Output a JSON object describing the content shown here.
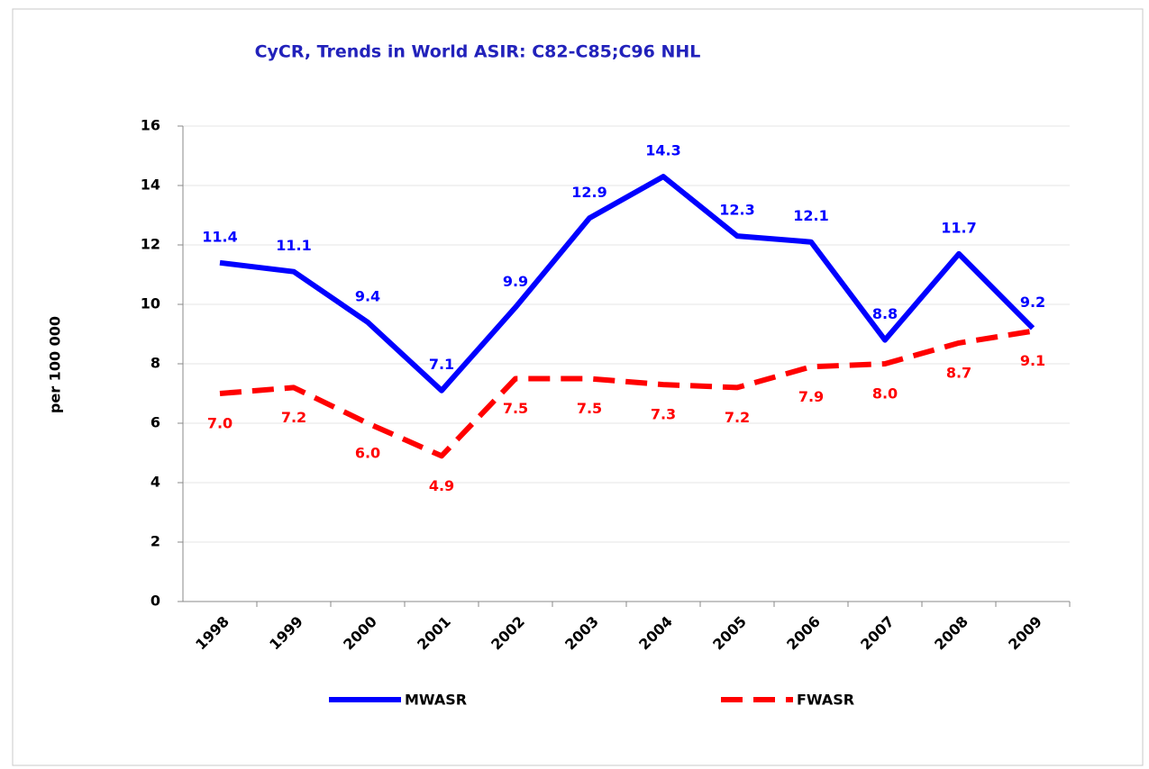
{
  "chart_data": {
    "type": "line",
    "title": "CyCR,  Trends in World ASIR:   C82-C85;C96  NHL",
    "y_label": "per 100 000",
    "categories": [
      "1998",
      "1999",
      "2000",
      "2001",
      "2002",
      "2003",
      "2004",
      "2005",
      "2006",
      "2007",
      "2008",
      "2009"
    ],
    "series": [
      {
        "name": "MWASR",
        "color": "#0000ff",
        "values": [
          11.4,
          11.1,
          9.4,
          7.1,
          9.9,
          12.9,
          14.3,
          12.3,
          12.1,
          8.8,
          11.7,
          9.2
        ]
      },
      {
        "name": "FWASR",
        "color": "#ff0000",
        "dashed": true,
        "values": [
          7,
          7.2,
          6,
          4.9,
          7.5,
          7.5,
          7.3,
          7.2,
          7.9,
          8,
          8.7,
          9.1
        ],
        "value_labels": [
          "7.0",
          "7.2",
          "6.0",
          "4.9",
          "7.5",
          "7.5",
          "7.3",
          "7.2",
          "7.9",
          "8.0",
          "8.7",
          "9.1"
        ]
      }
    ],
    "ylim": [
      0,
      16
    ],
    "yticks": [
      0,
      2,
      4,
      6,
      8,
      10,
      12,
      14,
      16
    ],
    "grid": true
  }
}
